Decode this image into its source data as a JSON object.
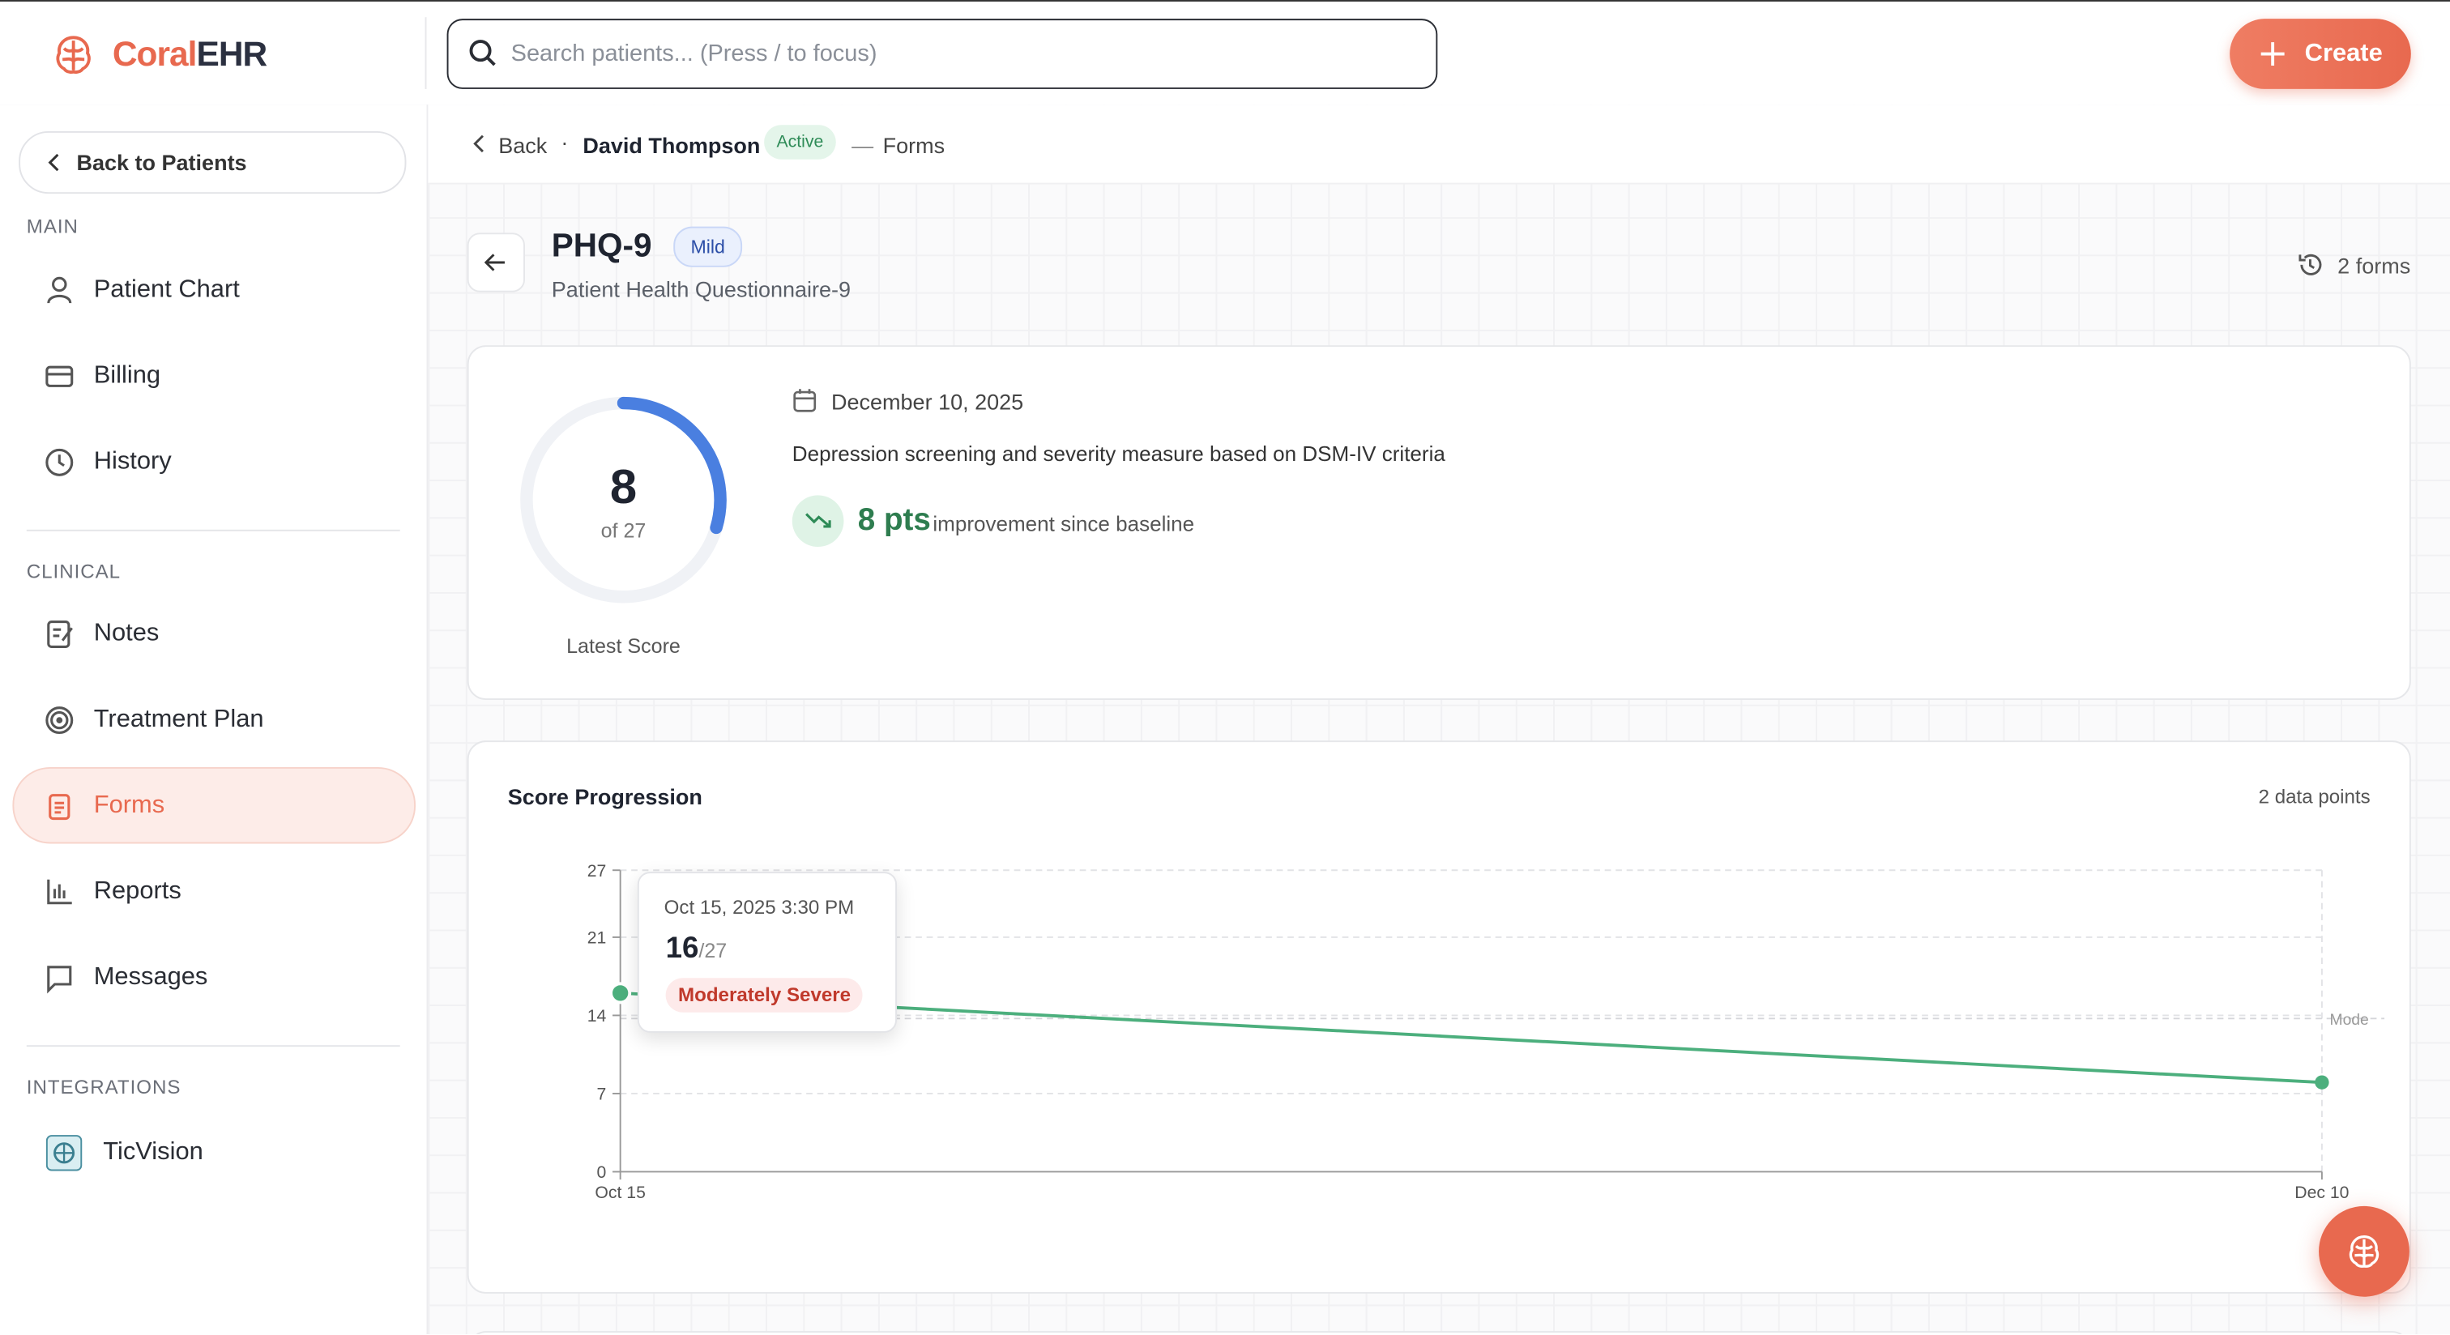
{
  "header": {
    "logo_first": "Coral",
    "logo_second": "EHR",
    "search_placeholder": "Search patients... (Press / to focus)",
    "create_button": "Create"
  },
  "sidebar": {
    "back": "Back to Patients",
    "sections": [
      {
        "title": "MAIN",
        "items": [
          "Patient Chart",
          "Billing",
          "History"
        ]
      },
      {
        "title": "CLINICAL",
        "items": [
          "Notes",
          "Treatment Plan",
          "Forms",
          "Reports",
          "Messages"
        ]
      },
      {
        "title": "INTEGRATIONS",
        "items": [
          "TicVision"
        ]
      }
    ]
  },
  "breadcrumb": {
    "back": "Back",
    "patient": "David Thompson",
    "status": "Active",
    "separator": "—",
    "page": "Forms"
  },
  "form": {
    "code": "PHQ-9",
    "severity": "Mild",
    "name": "Patient Health Questionnaire-9",
    "count": "2 forms"
  },
  "score": {
    "value": 8,
    "max": 27,
    "of_label": "of 27",
    "caption": "Latest Score",
    "date": "December 10, 2025",
    "description": "Depression screening and severity measure based on DSM-IV criteria",
    "change": "8 pts",
    "change_text": "improvement since baseline"
  },
  "chart_data": {
    "type": "line",
    "title": "Score Progression",
    "subtitle": "2 data points",
    "categories": [
      "Oct 15",
      "Dec 10"
    ],
    "values": [
      16,
      8
    ],
    "color": "#4caf7d",
    "ylim": [
      0,
      27
    ],
    "yticks": [
      0,
      7,
      14,
      21,
      27
    ],
    "grid": true,
    "reference_line": {
      "value": 14,
      "label": "Mode"
    },
    "tooltip": {
      "date": "Oct 15, 2025 3:30 PM",
      "value": 16,
      "max_label": "/27",
      "severity": "Moderately Severe"
    }
  }
}
